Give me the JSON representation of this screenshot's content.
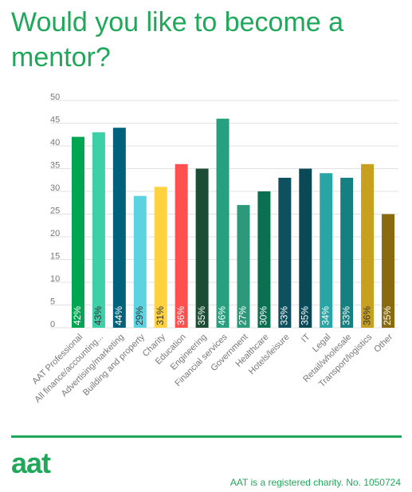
{
  "chart_data": {
    "type": "bar",
    "title": "Would you like to become a mentor?",
    "categories": [
      "AAT Professional",
      "All finance/accounting...",
      "Advertising/marketing",
      "Building and property",
      "Charity",
      "Education",
      "Engineering",
      "Financial services",
      "Government",
      "Healthcare",
      "Hotels/leisure",
      "IT",
      "Legal",
      "Retail/wholesale",
      "Transport/logistics",
      "Other"
    ],
    "values": [
      42,
      43,
      44,
      29,
      31,
      36,
      35,
      46,
      27,
      30,
      33,
      35,
      34,
      33,
      36,
      25
    ],
    "value_labels": [
      "42%",
      "43%",
      "44%",
      "29%",
      "31%",
      "36%",
      "35%",
      "46%",
      "27%",
      "30%",
      "33%",
      "35%",
      "34%",
      "33%",
      "36%",
      "25%"
    ],
    "colors": [
      "#00a651",
      "#3ccfa8",
      "#00627a",
      "#5bd3e0",
      "#ffd23f",
      "#ff5050",
      "#1b4d34",
      "#27a07f",
      "#2c9a7a",
      "#0b7050",
      "#0f5060",
      "#0a4a58",
      "#2aa5a5",
      "#168080",
      "#c8a020",
      "#8a6a10"
    ],
    "ylim": [
      0,
      50
    ],
    "yticks": [
      0,
      5,
      10,
      15,
      20,
      25,
      30,
      35,
      40,
      45,
      50
    ],
    "grid": true
  },
  "footer": {
    "logo": "aat",
    "note": "AAT is a registered charity. No. 1050724"
  }
}
